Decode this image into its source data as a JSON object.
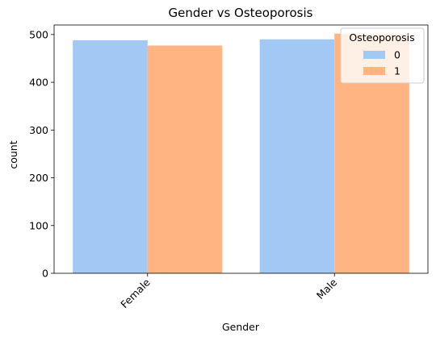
{
  "chart_data": {
    "type": "bar",
    "title": "Gender vs Osteoporosis",
    "xlabel": "Gender",
    "ylabel": "count",
    "categories": [
      "Female",
      "Male"
    ],
    "series": [
      {
        "name": "0",
        "values": [
          488,
          490
        ],
        "color": "#a1c9f4"
      },
      {
        "name": "1",
        "values": [
          477,
          502
        ],
        "color": "#ffb482"
      }
    ],
    "ylim": [
      0,
      520
    ],
    "yticks": [
      "0",
      "100",
      "200",
      "300",
      "400",
      "500"
    ],
    "grid": false,
    "legend": {
      "title": "Osteoporosis",
      "placement": "top-right"
    }
  }
}
